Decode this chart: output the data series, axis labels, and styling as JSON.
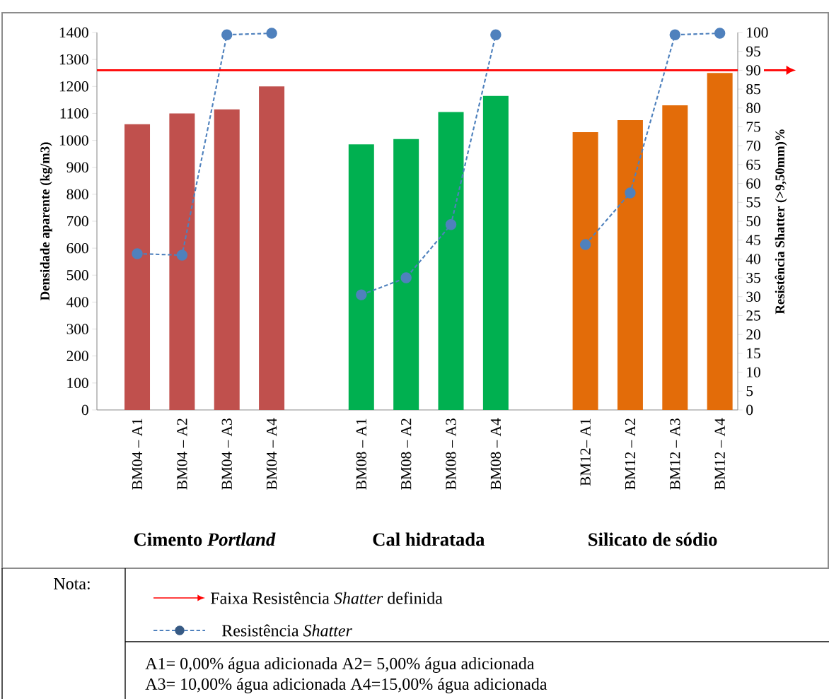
{
  "chart_data": {
    "type": "bar",
    "categories": [
      "BM04 – A1",
      "BM04 – A2",
      "BM04 – A3",
      "BM04 – A4",
      null,
      "BM08 – A1",
      "BM08 – A2",
      "BM08 – A3",
      "BM08 – A4",
      null,
      "BM12– A1",
      "BM12 – A2",
      "BM12 – A3",
      "BM12 – A4"
    ],
    "series": [
      {
        "values": [
          1060,
          1100,
          1115,
          1200,
          null,
          985,
          1005,
          1105,
          1165,
          null,
          1030,
          1075,
          1130,
          1250
        ],
        "colors": [
          "#c0504d",
          "#c0504d",
          "#c0504d",
          "#c0504d",
          null,
          "#00b050",
          "#00b050",
          "#00b050",
          "#00b050",
          null,
          "#e36c09",
          "#e36c09",
          "#e36c09",
          "#e36c09"
        ]
      },
      {
        "type": "line",
        "axis": "y2",
        "name": "Resistência *Shatter*",
        "color": "#4f81bd",
        "marker": "circle",
        "line_style": "dashed",
        "values": [
          41.4,
          41.0,
          99.4,
          99.8,
          null,
          30.5,
          35.0,
          49.1,
          99.4,
          null,
          43.8,
          57.5,
          99.4,
          99.8
        ]
      }
    ],
    "ylabel": "Densidade aparente (kg/m3)",
    "y2label": "Resistência Shatter (>9,50mm)%",
    "ylim": [
      0,
      1400
    ],
    "yticks": [
      0,
      100,
      200,
      300,
      400,
      500,
      600,
      700,
      800,
      900,
      1000,
      1100,
      1200,
      1300,
      1400
    ],
    "y2lim": [
      0,
      100
    ],
    "y2ticks": [
      0,
      5,
      10,
      15,
      20,
      25,
      30,
      35,
      40,
      45,
      50,
      55,
      60,
      65,
      70,
      75,
      80,
      85,
      90,
      95,
      100
    ],
    "ref_lines": [
      {
        "axis": "y2",
        "value": 90,
        "label": "Faixa Resistência *Shatter* definida",
        "color": "#ff0000"
      }
    ],
    "annotations": [
      "Cimento *Portland*",
      "Cal hidratada",
      "Silicato de sódio",
      "Nota:",
      "A1=    0,00% água adicionada A2= 5,00% água adicionada",
      "A3=    10,00% água adicionada A4=15,00% água adicionada"
    ],
    "legend": "bottom",
    "grid": false
  }
}
